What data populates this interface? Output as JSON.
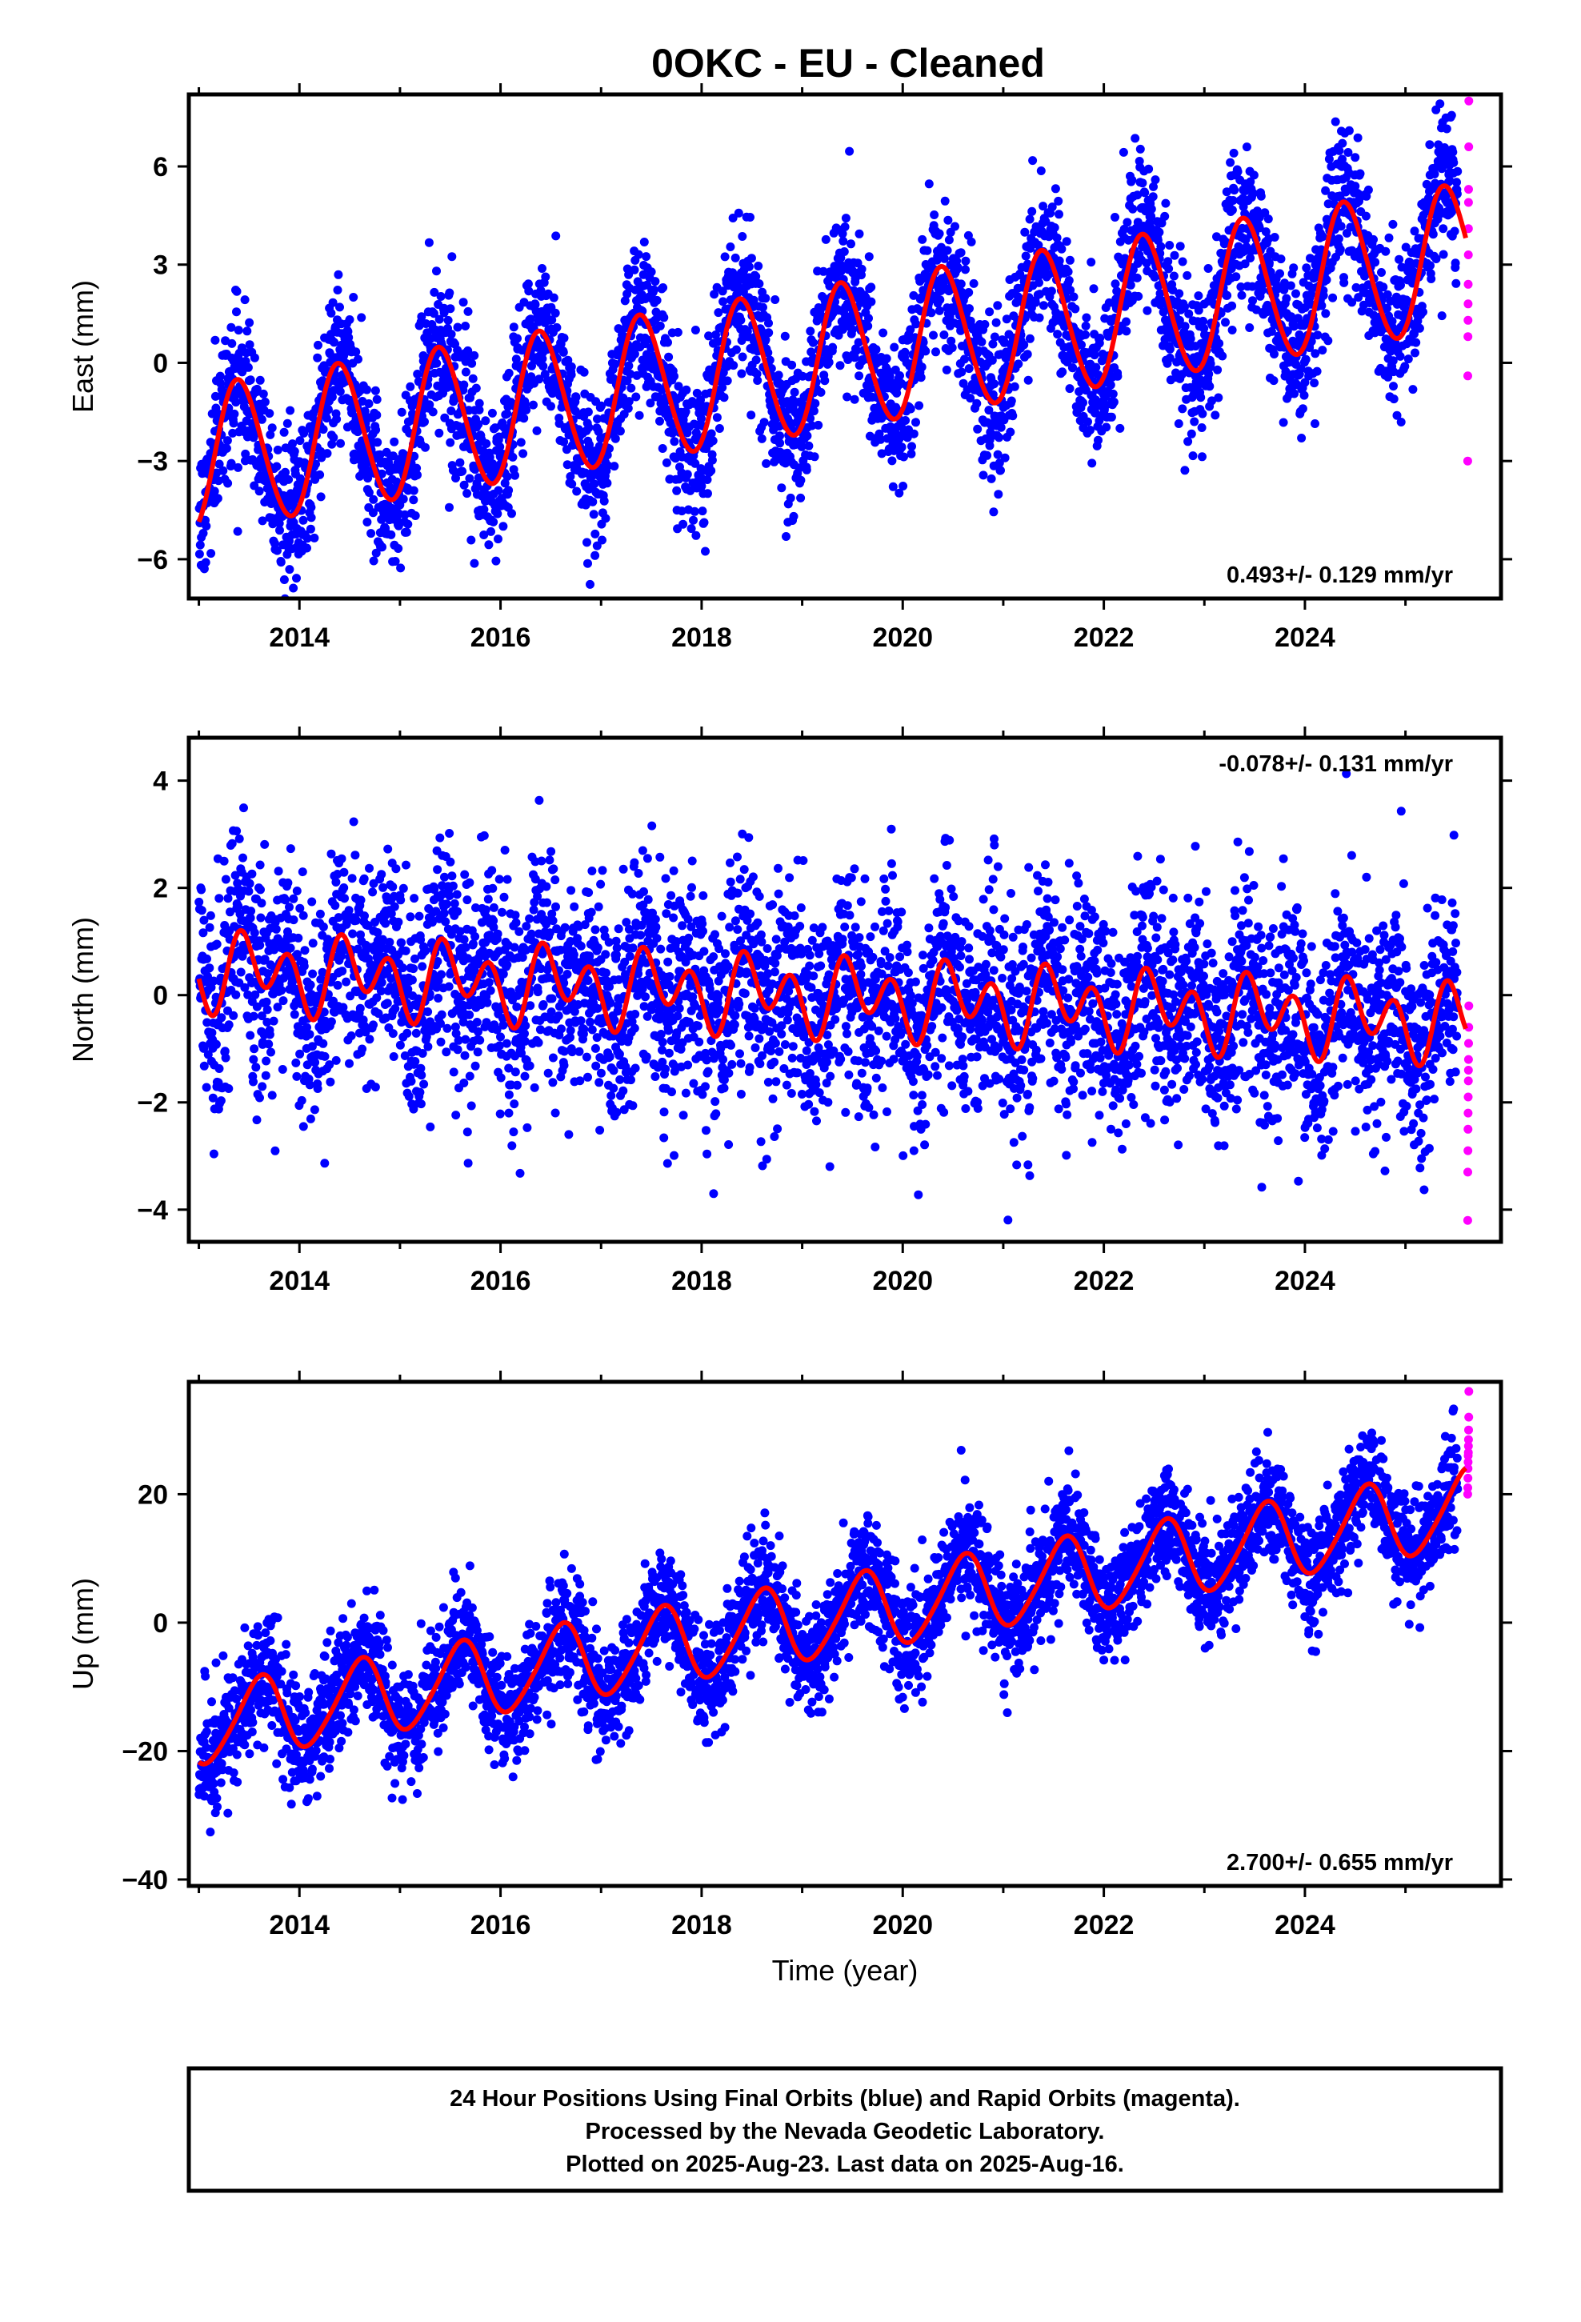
{
  "title": "0OKC  - EU - Cleaned",
  "footer": {
    "lines": [
      "24 Hour Positions Using Final Orbits (blue) and Rapid Orbits (magenta).",
      "Processed by the Nevada Geodetic Laboratory.",
      "Plotted on 2025-Aug-23. Last data on 2025-Aug-16."
    ]
  },
  "colors": {
    "final_orbits": "#0000ff",
    "rapid_orbits": "#ff00ff",
    "model": "#ff0000",
    "frame": "#000000"
  },
  "chart_data": [
    {
      "type": "scatter",
      "component": "east",
      "ylabel": "East (mm)",
      "xlabel": "",
      "xlim": [
        2012.9,
        2025.95
      ],
      "ylim": [
        -7.2,
        8.2
      ],
      "xticks": [
        2014,
        2016,
        2018,
        2020,
        2022,
        2024
      ],
      "yticks": [
        -6,
        -3,
        0,
        3,
        6
      ],
      "rate": "0.493+/- 0.129 mm/yr",
      "rate_position": "bottom-right",
      "model": {
        "offset_at_2019": 0.0,
        "rate": 0.493,
        "annual_amp": 2.2,
        "annual_phase_peak": 0.4,
        "semiannual_amp": 0.15,
        "semiannual_phase_peak": 0.3
      },
      "scatter": {
        "noise_sd": 1.15,
        "n_final": 4200,
        "rapid_window": [
          2025.52,
          2025.63
        ],
        "n_rapid": 12
      },
      "series": [
        {
          "name": "Final Orbits (blue)",
          "marker": "point"
        },
        {
          "name": "Rapid Orbits (magenta)",
          "marker": "point"
        },
        {
          "name": "model",
          "marker": "line"
        }
      ],
      "rapid_values": [
        8.0,
        6.6,
        5.3,
        4.9,
        4.1,
        3.3,
        2.4,
        1.8,
        1.3,
        0.8,
        -0.4,
        -3.0
      ]
    },
    {
      "type": "scatter",
      "component": "north",
      "ylabel": "North (mm)",
      "xlabel": "",
      "xlim": [
        2012.9,
        2025.95
      ],
      "ylim": [
        -4.6,
        4.8
      ],
      "xticks": [
        2014,
        2016,
        2018,
        2020,
        2022,
        2024
      ],
      "yticks": [
        -4,
        -2,
        0,
        2,
        4
      ],
      "rate": "-0.078+/- 0.131 mm/yr",
      "rate_position": "top-right",
      "model": {
        "offset_at_2019": 0.0,
        "rate": -0.078,
        "annual_amp": 0.35,
        "annual_phase_peak": 0.55,
        "semiannual_amp": 0.55,
        "semiannual_phase_peak": 0.4
      },
      "scatter": {
        "noise_sd": 1.0,
        "n_final": 4200,
        "rapid_window": [
          2025.52,
          2025.63
        ],
        "n_rapid": 12
      },
      "series": [
        {
          "name": "Final Orbits (blue)",
          "marker": "point"
        },
        {
          "name": "Rapid Orbits (magenta)",
          "marker": "point"
        },
        {
          "name": "model",
          "marker": "line"
        }
      ],
      "rapid_values": [
        -0.2,
        -0.6,
        -0.9,
        -1.2,
        -1.4,
        -1.6,
        -1.9,
        -2.2,
        -2.5,
        -2.9,
        -3.3,
        -4.2
      ]
    },
    {
      "type": "scatter",
      "component": "up",
      "ylabel": "Up (mm)",
      "xlabel": "Time (year)",
      "xlim": [
        2012.9,
        2025.95
      ],
      "ylim": [
        -41.0,
        37.5
      ],
      "xticks": [
        2014,
        2016,
        2018,
        2020,
        2022,
        2024
      ],
      "yticks": [
        -40,
        -20,
        0,
        20
      ],
      "rate": "2.700+/- 0.655 mm/yr",
      "rate_position": "bottom-right",
      "model": {
        "offset_at_2019": 0.0,
        "rate": 2.7,
        "annual_amp": 6.0,
        "annual_phase_peak": 0.6,
        "semiannual_amp": 0.8,
        "semiannual_phase_peak": 0.2
      },
      "scatter": {
        "noise_sd": 4.3,
        "n_final": 4200,
        "rapid_window": [
          2025.52,
          2025.63
        ],
        "n_rapid": 12
      },
      "series": [
        {
          "name": "Final Orbits (blue)",
          "marker": "point"
        },
        {
          "name": "Rapid Orbits (magenta)",
          "marker": "point"
        },
        {
          "name": "model",
          "marker": "line"
        }
      ],
      "rapid_values": [
        36.0,
        32.0,
        30.0,
        28.5,
        27.5,
        26.5,
        26.0,
        25.0,
        24.0,
        22.5,
        21.0,
        20.0
      ]
    }
  ]
}
